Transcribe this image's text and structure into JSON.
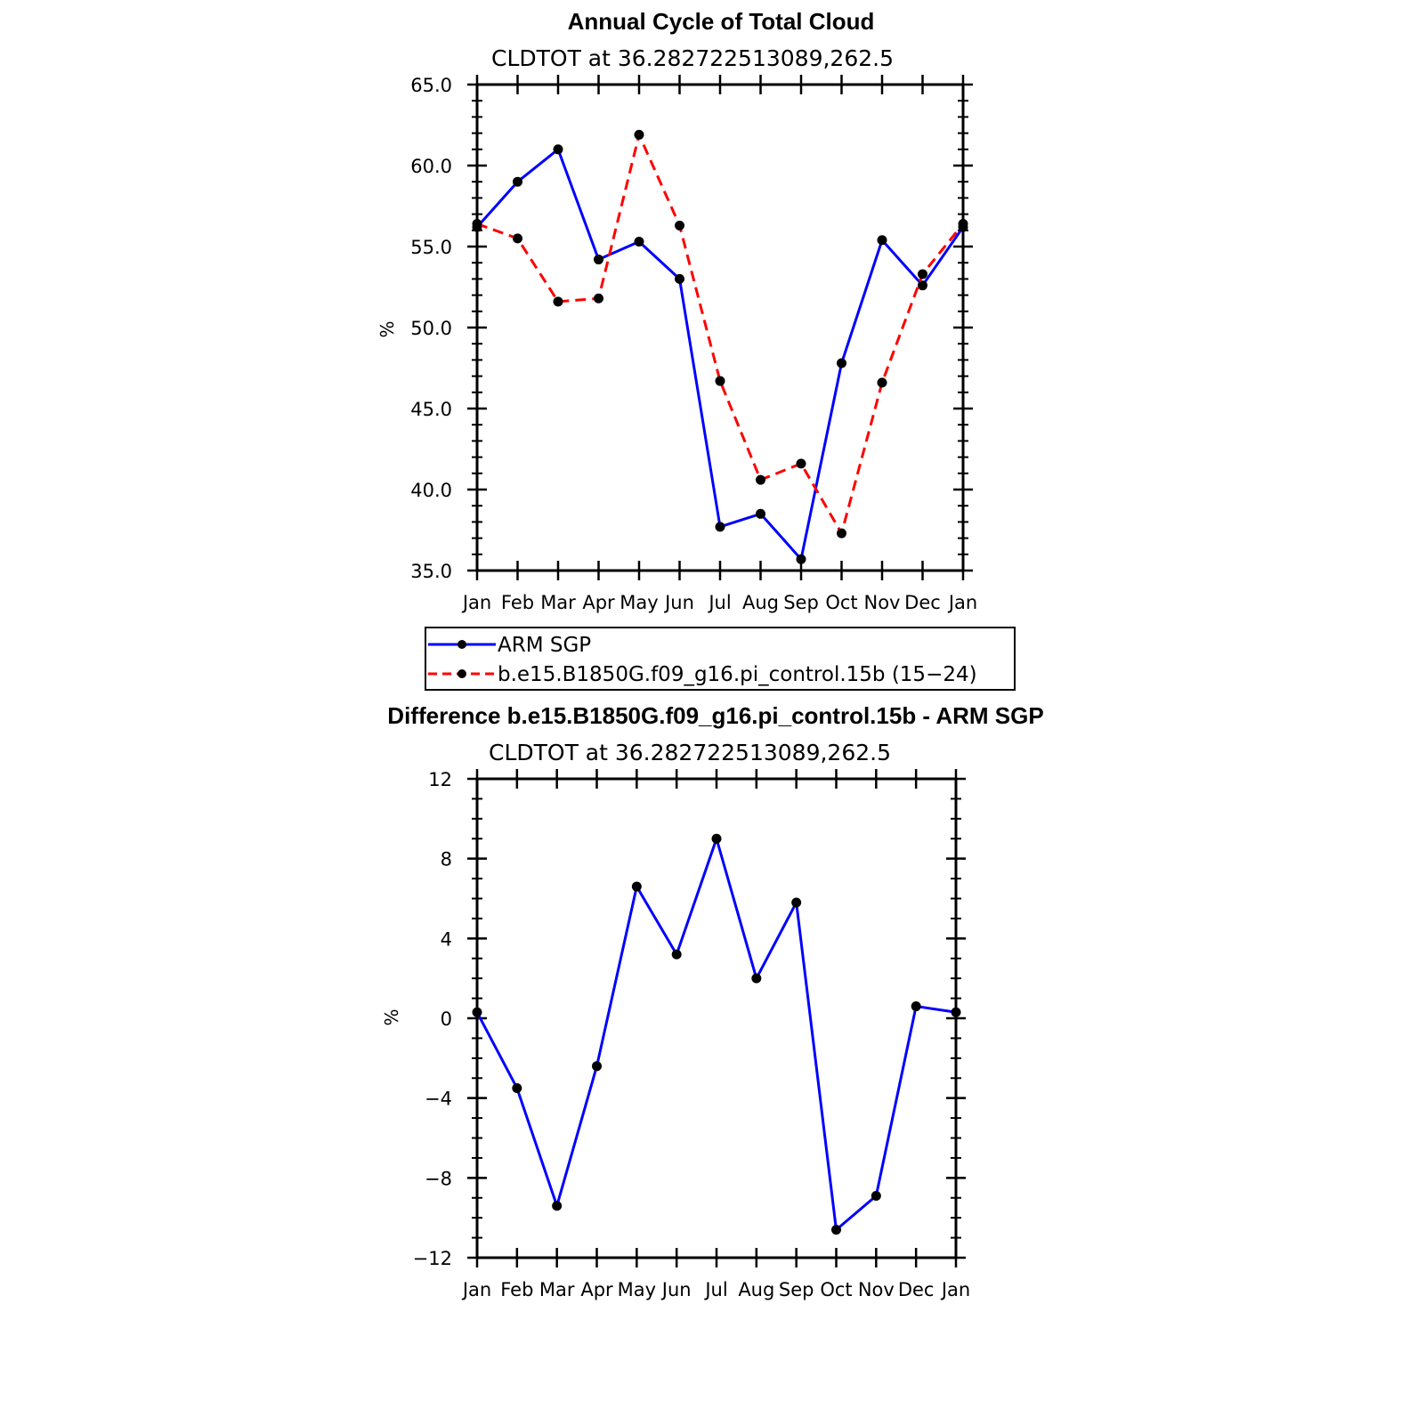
{
  "chart_data": [
    {
      "type": "line",
      "title": "Annual Cycle of Total Cloud",
      "subtitle": "CLDTOT at 36.282722513089,262.5",
      "ylabel": "%",
      "ylim": [
        35.0,
        65.0
      ],
      "yticks": [
        "35.0",
        "40.0",
        "45.0",
        "50.0",
        "55.0",
        "60.0",
        "65.0"
      ],
      "ytick_values": [
        35,
        40,
        45,
        50,
        55,
        60,
        65
      ],
      "categories": [
        "Jan",
        "Feb",
        "Mar",
        "Apr",
        "May",
        "Jun",
        "Jul",
        "Aug",
        "Sep",
        "Oct",
        "Nov",
        "Dec",
        "Jan"
      ],
      "series": [
        {
          "name": "ARM SGP",
          "color": "#0000ff",
          "dash": "solid",
          "values": [
            56.2,
            59.0,
            61.0,
            54.2,
            55.3,
            53.0,
            37.7,
            38.5,
            35.7,
            47.8,
            55.4,
            52.6,
            56.2
          ]
        },
        {
          "name": "b.e15.B1850G.f09_g16.pi_control.15b (15-24)",
          "color": "#ff0000",
          "dash": "dashed",
          "values": [
            56.4,
            55.5,
            51.6,
            51.8,
            61.9,
            56.3,
            46.7,
            40.6,
            41.6,
            37.3,
            46.6,
            53.3,
            56.4
          ]
        }
      ]
    },
    {
      "type": "line",
      "title": "Difference b.e15.B1850G.f09_g16.pi_control.15b - ARM SGP",
      "subtitle": "CLDTOT at 36.282722513089,262.5",
      "ylabel": "%",
      "ylim": [
        -12,
        12
      ],
      "yticks": [
        "−12",
        "−8",
        "−4",
        "0",
        "4",
        "8",
        "12"
      ],
      "ytick_values": [
        -12,
        -8,
        -4,
        0,
        4,
        8,
        12
      ],
      "categories": [
        "Jan",
        "Feb",
        "Mar",
        "Apr",
        "May",
        "Jun",
        "Jul",
        "Aug",
        "Sep",
        "Oct",
        "Nov",
        "Dec",
        "Jan"
      ],
      "series": [
        {
          "color": "#0000ff",
          "dash": "solid",
          "values": [
            0.3,
            -3.5,
            -9.4,
            -2.4,
            6.6,
            3.2,
            9.0,
            2.0,
            5.8,
            -10.6,
            -8.9,
            0.6,
            0.3
          ]
        }
      ]
    }
  ],
  "legend": {
    "entries": [
      "ARM SGP",
      "b.e15.B1850G.f09_g16.pi_control.15b (15−24)"
    ]
  }
}
